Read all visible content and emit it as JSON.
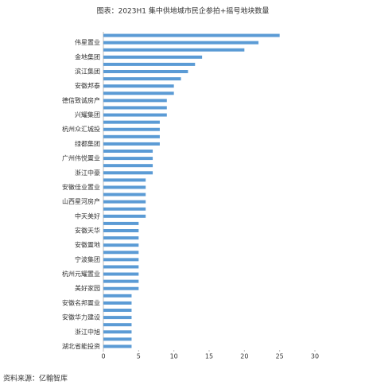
{
  "chart_data": {
    "type": "hbar",
    "title": "图表：2023H1 集中供地城市民企参拍+摇号地块数量",
    "source": "资料来源：亿翰智库",
    "categories": [
      null,
      "伟星置业",
      null,
      "金地集团",
      null,
      "滨江集团",
      null,
      "安徽邦泰",
      null,
      "德信致诚房产",
      null,
      "兴耀集团",
      null,
      "杭州众汇城投",
      null,
      "绿都集团",
      null,
      "广州伟悦置业",
      null,
      "浙江中豪",
      null,
      "安徽佳业置业",
      null,
      "山西星河房产",
      null,
      "中天美好",
      null,
      "安徽天华",
      null,
      "安徽置地",
      null,
      "宁波集团",
      null,
      "杭州元耀置业",
      null,
      "美好家园",
      null,
      "安徽名邦置业",
      null,
      "安徽华力建设",
      null,
      "浙江中旭",
      null,
      "湖北省能投资"
    ],
    "values": [
      25,
      22,
      20,
      14,
      13,
      12,
      11,
      10,
      10,
      9,
      9,
      9,
      8,
      8,
      8,
      8,
      7,
      7,
      7,
      7,
      6,
      6,
      6,
      6,
      6,
      6,
      5,
      5,
      5,
      5,
      5,
      5,
      5,
      5,
      5,
      5,
      4,
      4,
      4,
      4,
      4,
      4,
      4,
      4
    ],
    "color": "#5b9bd5",
    "xlim": [
      0,
      30
    ],
    "xticks": [
      0,
      5,
      10,
      15,
      20,
      25,
      30
    ]
  }
}
